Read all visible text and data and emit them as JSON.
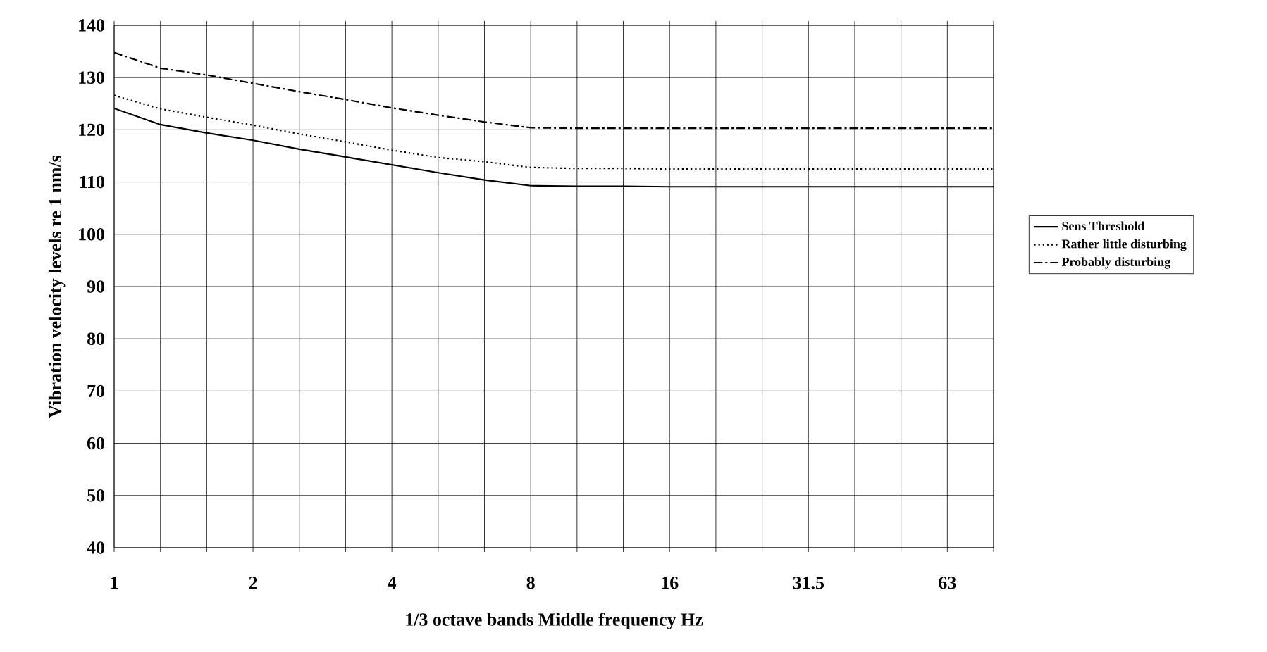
{
  "chart_data": {
    "type": "line",
    "xlabel": "1/3 octave bands Middle frequency Hz",
    "ylabel": "Vibration velocity levels re 1 nm/s",
    "categories": [
      "1",
      null,
      null,
      "2",
      null,
      null,
      "4",
      null,
      null,
      "8",
      null,
      null,
      "16",
      null,
      null,
      "31.5",
      null,
      null,
      "63",
      null
    ],
    "ylim": [
      40,
      140
    ],
    "yticks": [
      40,
      50,
      60,
      70,
      80,
      90,
      100,
      110,
      120,
      130,
      140
    ],
    "grid": true,
    "legend": "right",
    "marker": "none",
    "series": [
      {
        "name": "Sens Threshold",
        "color": "#000000",
        "line_style": "solid",
        "values": [
          124.1,
          121,
          119.4,
          118,
          116.3,
          114.8,
          113.3,
          111.8,
          110.4,
          109.3,
          109.2,
          109.2,
          109.1,
          109.1,
          109.1,
          109.1,
          109.1,
          109.1,
          109.1,
          109.1
        ]
      },
      {
        "name": "Rather little disturbing",
        "color": "#000000",
        "line_style": "dotted",
        "values": [
          126.6,
          124,
          122.4,
          120.9,
          119.2,
          117.7,
          116.1,
          114.7,
          113.9,
          112.8,
          112.6,
          112.6,
          112.5,
          112.5,
          112.5,
          112.5,
          112.5,
          112.5,
          112.5,
          112.5
        ]
      },
      {
        "name": "Probably disturbing",
        "color": "#000000",
        "line_style": "dashdot",
        "values": [
          134.8,
          131.8,
          130.5,
          128.9,
          127.3,
          125.8,
          124.2,
          122.8,
          121.5,
          120.4,
          120.3,
          120.3,
          120.3,
          120.3,
          120.3,
          120.3,
          120.3,
          120.3,
          120.3,
          120.3
        ]
      }
    ]
  }
}
